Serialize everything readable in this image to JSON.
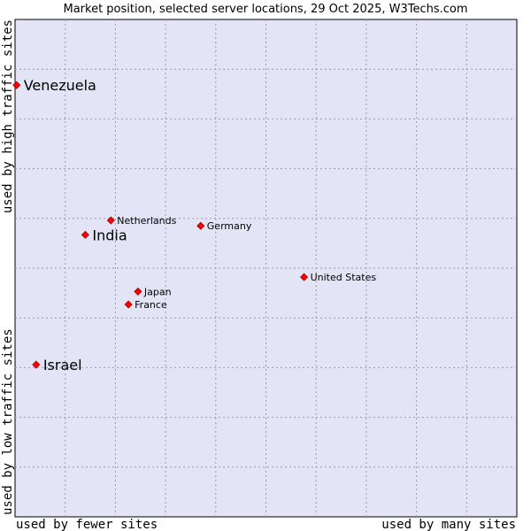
{
  "chart_data": {
    "type": "scatter",
    "title": "Market position, selected server locations, 29 Oct 2025, W3Techs.com",
    "xlabel_left": "used by fewer sites",
    "xlabel_right": "used by many sites",
    "ylabel_bottom": "used by low traffic sites",
    "ylabel_top": "used by high traffic sites",
    "xlim": [
      0,
      100
    ],
    "ylim": [
      0,
      100
    ],
    "grid": true,
    "point_color": "#ff0000",
    "plot_background": "#e3e5f7",
    "points": [
      {
        "name": "Venezuela",
        "x": 0.3,
        "y": 86.8,
        "highlight": true
      },
      {
        "name": "India",
        "x": 14.0,
        "y": 56.7,
        "highlight": true
      },
      {
        "name": "Israel",
        "x": 4.2,
        "y": 30.6,
        "highlight": true
      },
      {
        "name": "Netherlands",
        "x": 19.1,
        "y": 59.6,
        "highlight": false
      },
      {
        "name": "Germany",
        "x": 37.0,
        "y": 58.5,
        "highlight": false
      },
      {
        "name": "United States",
        "x": 57.6,
        "y": 48.2,
        "highlight": false
      },
      {
        "name": "Japan",
        "x": 24.5,
        "y": 45.3,
        "highlight": false
      },
      {
        "name": "France",
        "x": 22.6,
        "y": 42.7,
        "highlight": false
      }
    ]
  }
}
